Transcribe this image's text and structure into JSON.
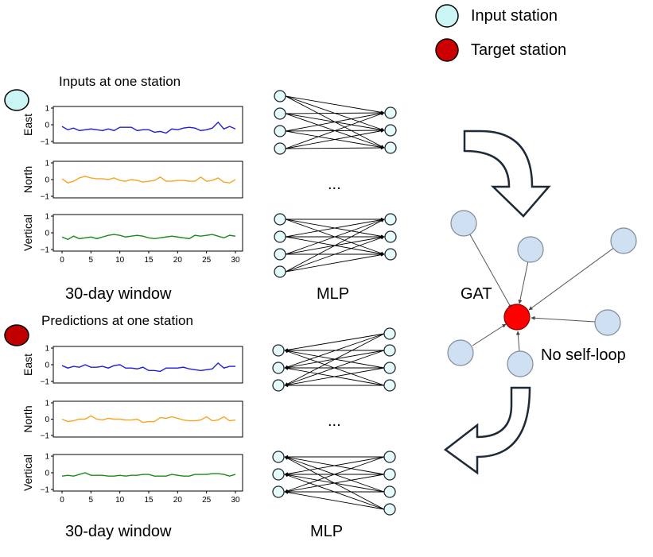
{
  "legend": {
    "input_label": "Input station",
    "target_label": "Target station",
    "input_color": "#ccf5f5",
    "target_color": "#cc0000"
  },
  "top_panel": {
    "title": "Inputs at one station",
    "marker_color": "#ccf5f5",
    "window_label": "30-day window",
    "mlp_label": "MLP",
    "ellipsis": "..."
  },
  "bottom_panel": {
    "title": "Predictions at one station",
    "marker_color": "#c00000",
    "window_label": "30-day window",
    "mlp_label": "MLP",
    "ellipsis": "..."
  },
  "gat": {
    "label": "GAT",
    "note": "No self-loop",
    "neighbor_color": "#cfe0f3",
    "target_color": "#ff0000"
  },
  "chart_data": [
    {
      "type": "line",
      "title": "",
      "series": [
        {
          "name": "East",
          "color": "#1f1fd8",
          "values": [
            -0.1,
            -0.3,
            -0.2,
            -0.35,
            -0.3,
            -0.25,
            -0.3,
            -0.35,
            -0.25,
            -0.35,
            -0.15,
            -0.15,
            -0.15,
            -0.35,
            -0.3,
            -0.3,
            -0.45,
            -0.4,
            -0.5,
            -0.25,
            -0.3,
            -0.2,
            -0.15,
            -0.2,
            -0.35,
            -0.3,
            -0.2,
            0.15,
            -0.25,
            -0.1,
            -0.25
          ]
        },
        {
          "name": "North",
          "color": "#f5a623",
          "values": [
            0.05,
            -0.2,
            -0.1,
            0.1,
            0.2,
            0.1,
            0.05,
            0.05,
            0.0,
            0.1,
            -0.05,
            -0.1,
            0.0,
            -0.05,
            -0.15,
            -0.1,
            -0.05,
            0.15,
            -0.1,
            -0.1,
            -0.05,
            -0.05,
            -0.1,
            -0.1,
            0.15,
            -0.1,
            -0.05,
            0.1,
            -0.15,
            -0.2,
            0.0
          ]
        },
        {
          "name": "Vertical",
          "color": "#1a8a1a",
          "values": [
            -0.25,
            -0.4,
            -0.2,
            -0.35,
            -0.3,
            -0.25,
            -0.35,
            -0.25,
            -0.15,
            -0.1,
            -0.15,
            -0.25,
            -0.2,
            -0.15,
            -0.2,
            -0.3,
            -0.35,
            -0.3,
            -0.25,
            -0.2,
            -0.25,
            -0.3,
            -0.35,
            -0.15,
            -0.2,
            -0.15,
            -0.1,
            -0.2,
            -0.3,
            -0.15,
            -0.2
          ]
        }
      ],
      "xticks": [
        "0",
        "5",
        "10",
        "15",
        "20",
        "25",
        "30"
      ],
      "yticks": [
        "1",
        "0",
        "−1"
      ],
      "xlim": [
        0,
        30
      ],
      "ylim": [
        -1,
        1
      ]
    },
    {
      "type": "line",
      "title": "",
      "series": [
        {
          "name": "East",
          "color": "#1f1fd8",
          "values": [
            -0.05,
            -0.2,
            -0.1,
            -0.15,
            0.0,
            -0.15,
            -0.15,
            -0.1,
            -0.2,
            -0.05,
            0.0,
            -0.2,
            -0.2,
            -0.25,
            -0.15,
            -0.35,
            -0.35,
            -0.4,
            -0.2,
            -0.2,
            -0.2,
            -0.15,
            -0.25,
            -0.3,
            -0.35,
            -0.3,
            -0.25,
            0.1,
            -0.2,
            -0.1,
            -0.1
          ]
        },
        {
          "name": "North",
          "color": "#f5a623",
          "values": [
            0.0,
            -0.15,
            -0.1,
            0.0,
            0.0,
            0.2,
            0.0,
            -0.05,
            0.05,
            0.0,
            0.0,
            -0.05,
            -0.05,
            0.0,
            -0.2,
            -0.15,
            -0.15,
            0.1,
            0.05,
            0.15,
            0.05,
            -0.05,
            -0.1,
            -0.1,
            -0.05,
            0.15,
            -0.1,
            -0.05,
            0.15,
            -0.1,
            -0.05
          ]
        },
        {
          "name": "Vertical",
          "color": "#1a8a1a",
          "values": [
            -0.2,
            -0.15,
            -0.2,
            -0.1,
            0.0,
            -0.15,
            -0.15,
            -0.15,
            -0.2,
            -0.2,
            -0.15,
            -0.2,
            -0.15,
            -0.15,
            -0.1,
            -0.1,
            -0.2,
            -0.2,
            -0.2,
            -0.1,
            -0.15,
            -0.2,
            -0.2,
            -0.1,
            -0.1,
            -0.1,
            -0.05,
            -0.05,
            -0.1,
            -0.2,
            -0.1
          ]
        }
      ],
      "xticks": [
        "0",
        "5",
        "10",
        "15",
        "20",
        "25",
        "30"
      ],
      "yticks": [
        "1",
        "0",
        "−1"
      ],
      "xlim": [
        0,
        30
      ],
      "ylim": [
        -1,
        1
      ]
    }
  ]
}
